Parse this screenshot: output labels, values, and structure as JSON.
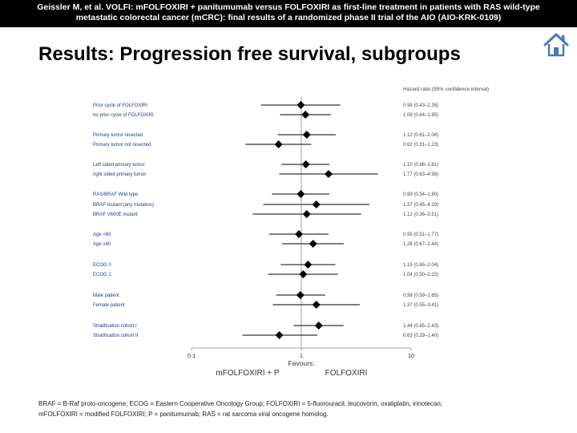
{
  "header": {
    "citation_line1": "Geissler M, et al. VOLFI: mFOLFOXIRI + panitumumab versus FOLFOXIRI as first-line treatment in patients with RAS wild-type",
    "citation_line2": "metastatic colorectal cancer (mCRC): final results of a randomized phase II trial of the AIO (AIO-KRK-0109)"
  },
  "slide": {
    "title": "Results: Progression free survival, subgroups"
  },
  "nav": {
    "home_icon": "home-icon"
  },
  "footnote": {
    "line1": "BRAF = B-Raf proto-oncogene; ECOG = Eastern Cooperative Oncology Group; FOLFOXIRI = 5-fluorouracil, leucovorin, oxaliplatin, irinotecan;",
    "line2": "mFOLFOXIRI = modified FOLFOXIRI; P = panitumumab; RAS = rat sarcoma viral oncogene homolog."
  },
  "colors": {
    "header_bg": "#000000",
    "header_text": "#ffffff",
    "marker": "#000000",
    "group_label": "#1f3c88",
    "home_icon": "#4a7ab5"
  },
  "chart_data": {
    "type": "forest",
    "title": "",
    "xlabel": "Favours:",
    "x_scale": "log",
    "xlim": [
      0.1,
      10
    ],
    "xticks": [
      "0.1",
      "1",
      "10"
    ],
    "reference_line": 1,
    "favours_left": "mFOLFOXIRI + P",
    "favours_right": "FOLFOXIRI",
    "column_header": "Hazard ratio (95% confidence interval)",
    "rows": [
      {
        "label": "Prior cycle of FOLFOXIRI",
        "hr": 0.99,
        "lo": 0.43,
        "hi": 2.26,
        "text": "0.99 (0.43–2.26)"
      },
      {
        "label": "no prior cycle of FOLFOXIRI",
        "hr": 1.09,
        "lo": 0.64,
        "hi": 1.85,
        "text": "1.09 (0.64–1.85)"
      },
      {
        "label": "Primary tumor resected",
        "hr": 1.12,
        "lo": 0.61,
        "hi": 2.06,
        "text": "1.12 (0.61–2.06)"
      },
      {
        "label": "Primary tumor not resected",
        "hr": 0.62,
        "lo": 0.31,
        "hi": 1.23,
        "text": "0.62 (0.31–1.23)"
      },
      {
        "label": "Left sided primary tumor",
        "hr": 1.1,
        "lo": 0.66,
        "hi": 1.81,
        "text": "1.10 (0.66–1.81)"
      },
      {
        "label": "right sided primary tumor",
        "hr": 1.77,
        "lo": 0.63,
        "hi": 4.98,
        "text": "1.77 (0.63–4.98)"
      },
      {
        "label": "RAS/BRAF Wild type",
        "hr": 0.99,
        "lo": 0.54,
        "hi": 1.8,
        "text": "0.99 (0.54–1.80)"
      },
      {
        "label": "BRAF mutant (any mutation)",
        "hr": 1.37,
        "lo": 0.45,
        "hi": 4.19,
        "text": "1.37 (0.45–4.19)"
      },
      {
        "label": "BRAF V600E mutant",
        "hr": 1.12,
        "lo": 0.36,
        "hi": 3.51,
        "text": "1.12 (0.36–3.51)"
      },
      {
        "label": "Age <60",
        "hr": 0.95,
        "lo": 0.51,
        "hi": 1.77,
        "text": "0.95 (0.51–1.77)"
      },
      {
        "label": "Age ≥60",
        "hr": 1.28,
        "lo": 0.67,
        "hi": 2.44,
        "text": "1.28 (0.67–2.44)"
      },
      {
        "label": "ECOG 0",
        "hr": 1.15,
        "lo": 0.65,
        "hi": 2.04,
        "text": "1.15 (0.65–2.04)"
      },
      {
        "label": "ECOG 1",
        "hr": 1.04,
        "lo": 0.5,
        "hi": 2.15,
        "text": "1.04 (0.50–2.15)"
      },
      {
        "label": "Male patient",
        "hr": 0.98,
        "lo": 0.59,
        "hi": 1.65,
        "text": "0.98 (0.59–1.65)"
      },
      {
        "label": "Female patient",
        "hr": 1.37,
        "lo": 0.55,
        "hi": 3.41,
        "text": "1.37 (0.55–3.41)"
      },
      {
        "label": "Stratification cohort I",
        "hr": 1.44,
        "lo": 0.85,
        "hi": 2.43,
        "text": "1.44 (0.85–2.43)"
      },
      {
        "label": "Stratification cohort II",
        "hr": 0.63,
        "lo": 0.29,
        "hi": 1.4,
        "text": "0.63 (0.29–1.40)"
      }
    ]
  }
}
